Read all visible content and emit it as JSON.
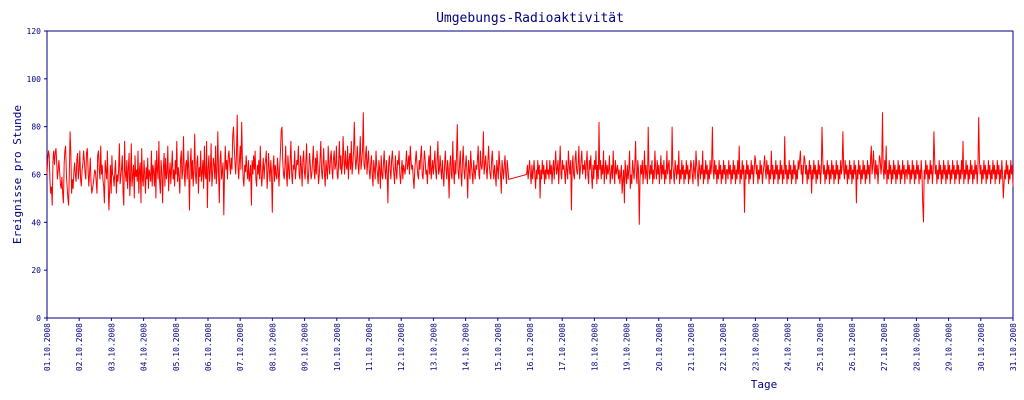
{
  "chart_data": {
    "type": "line",
    "title": "Umgebungs-Radioaktivität",
    "xlabel": "Tage",
    "ylabel": "Ereignisse pro Stunde",
    "ylim": [
      0,
      120
    ],
    "yticks": [
      0,
      20,
      40,
      60,
      80,
      100,
      120
    ],
    "xlim": [
      "2008-10-01",
      "2008-10-31"
    ],
    "xticks": [
      "01.10.2008",
      "02.10.2008",
      "03.10.2008",
      "04.10.2008",
      "05.10.2008",
      "06.10.2008",
      "07.10.2008",
      "08.10.2008",
      "09.10.2008",
      "10.10.2008",
      "11.10.2008",
      "12.10.2008",
      "13.10.2008",
      "14.10.2008",
      "15.10.2008",
      "16.10.2008",
      "17.10.2008",
      "18.10.2008",
      "19.10.2008",
      "20.10.2008",
      "21.10.2008",
      "22.10.2008",
      "23.10.2008",
      "24.10.2008",
      "25.10.2008",
      "26.10.2008",
      "27.10.2008",
      "28.10.2008",
      "29.10.2008",
      "30.10.2008",
      "31.10.2008"
    ],
    "grid": false,
    "colors": {
      "line": "#ff0000",
      "axis": "#000080",
      "text": "#000080"
    },
    "series": [
      {
        "sampling": "hourly",
        "start": "2008-10-01",
        "values": [
          60,
          66,
          70,
          68,
          57,
          52,
          55,
          47,
          66,
          70,
          64,
          69,
          71,
          65,
          58,
          62,
          66,
          61,
          56,
          54,
          59,
          52,
          48,
          65,
          70,
          72,
          60,
          55,
          50,
          47,
          62,
          78,
          68,
          52,
          58,
          54,
          61,
          65,
          60,
          57,
          66,
          69,
          58,
          62,
          70,
          58,
          55,
          62,
          64,
          70,
          66,
          61,
          58,
          69,
          71,
          63,
          55,
          60,
          67,
          57,
          52,
          54,
          56,
          59,
          62,
          61,
          57,
          52,
          68,
          70,
          62,
          58,
          72,
          60,
          64,
          58,
          55,
          48,
          66,
          62,
          58,
          70,
          56,
          45,
          54,
          64,
          52,
          68,
          60,
          59,
          55,
          62,
          66,
          52,
          60,
          57,
          62,
          73,
          56,
          59,
          63,
          68,
          52,
          47,
          74,
          61,
          57,
          66,
          54,
          62,
          69,
          51,
          58,
          73,
          55,
          60,
          64,
          50,
          68,
          59,
          62,
          57,
          70,
          52,
          62,
          65,
          48,
          71,
          58,
          55,
          66,
          60,
          52,
          63,
          58,
          67,
          54,
          62,
          60,
          57,
          70,
          55,
          64,
          61,
          55,
          66,
          50,
          70,
          62,
          58,
          74,
          57,
          52,
          66,
          60,
          48,
          63,
          69,
          55,
          67,
          58,
          61,
          72,
          53,
          60,
          65,
          56,
          63,
          70,
          58,
          62,
          55,
          66,
          60,
          74,
          57,
          63,
          59,
          52,
          66,
          70,
          58,
          62,
          76,
          60,
          55,
          64,
          66,
          58,
          70,
          62,
          45,
          64,
          71,
          58,
          66,
          55,
          62,
          77,
          60,
          56,
          65,
          68,
          52,
          63,
          59,
          70,
          57,
          61,
          66,
          54,
          72,
          60,
          58,
          74,
          46,
          62,
          68,
          57,
          62,
          73,
          55,
          60,
          67,
          64,
          58,
          72,
          56,
          62,
          78,
          60,
          48,
          66,
          70,
          58,
          61,
          65,
          43,
          60,
          72,
          62,
          66,
          58,
          68,
          70,
          64,
          60,
          67,
          62,
          76,
          80,
          72,
          65,
          60,
          69,
          85,
          63,
          58,
          66,
          72,
          62,
          82,
          66,
          58,
          55,
          64,
          61,
          68,
          62,
          58,
          66,
          57,
          60,
          64,
          47,
          66,
          60,
          68,
          62,
          70,
          58,
          55,
          64,
          60,
          66,
          58,
          72,
          60,
          55,
          62,
          67,
          58,
          64,
          66,
          70,
          54,
          60,
          69,
          62,
          57,
          66,
          61,
          44,
          62,
          68,
          57,
          64,
          60,
          58,
          67,
          62,
          55,
          63,
          70,
          78,
          80,
          66,
          60,
          58,
          64,
          72,
          60,
          55,
          68,
          62,
          58,
          66,
          74,
          60,
          56,
          64,
          62,
          70,
          58,
          62,
          66,
          64,
          72,
          60,
          58,
          68,
          63,
          55,
          66,
          70,
          61,
          58,
          65,
          73,
          60,
          56,
          62,
          69,
          64,
          58,
          60,
          66,
          72,
          62,
          58,
          67,
          60,
          70,
          64,
          56,
          60,
          66,
          74,
          62,
          58,
          64,
          71,
          60,
          55,
          66,
          62,
          58,
          72,
          64,
          60,
          67,
          70,
          62,
          58,
          66,
          70,
          62,
          64,
          72,
          60,
          58,
          66,
          74,
          62,
          68,
          60,
          64,
          76,
          66,
          60,
          70,
          64,
          62,
          72,
          58,
          66,
          69,
          62,
          74,
          60,
          64,
          70,
          82,
          68,
          62,
          66,
          72,
          64,
          60,
          68,
          76,
          62,
          66,
          70,
          86,
          64,
          62,
          68,
          72,
          60,
          66,
          70,
          62,
          58,
          64,
          68,
          60,
          55,
          66,
          62,
          58,
          70,
          64,
          60,
          56,
          66,
          62,
          54,
          68,
          60,
          58,
          64,
          70,
          62,
          58,
          66,
          60,
          48,
          64,
          68,
          62,
          58,
          66,
          70,
          64,
          60,
          56,
          68,
          62,
          58,
          66,
          64,
          70,
          60,
          56,
          62,
          66,
          58,
          64,
          62,
          60,
          65,
          70,
          62,
          64,
          68,
          60,
          72,
          66,
          62,
          64,
          58,
          54,
          62,
          66,
          70,
          64,
          60,
          58,
          66,
          62,
          68,
          72,
          60,
          58,
          64,
          70,
          66,
          60,
          62,
          56,
          64,
          68,
          60,
          72,
          58,
          62,
          66,
          60,
          64,
          70,
          62,
          58,
          66,
          74,
          60,
          62,
          68,
          62,
          58,
          66,
          60,
          55,
          64,
          70,
          62,
          58,
          66,
          62,
          50,
          64,
          68,
          60,
          58,
          74,
          62,
          56,
          66,
          60,
          68,
          81,
          62,
          58,
          64,
          70,
          60,
          55,
          66,
          72,
          62,
          58,
          64,
          68,
          60,
          50,
          66,
          62,
          58,
          70,
          64,
          60,
          56,
          66,
          62,
          58,
          64,
          62,
          66,
          72,
          60,
          58,
          70,
          64,
          62,
          66,
          78,
          60,
          64,
          68,
          62,
          58,
          66,
          72,
          64,
          60,
          58,
          66,
          70,
          62,
          58,
          64,
          60,
          55,
          66,
          62,
          58,
          70,
          64,
          60,
          52,
          66,
          62,
          58,
          64,
          68,
          60,
          56,
          66,
          62,
          58,
          64,
          70,
          62,
          58,
          60,
          64,
          58,
          62,
          66,
          56,
          60,
          64,
          52,
          62,
          58,
          66,
          60,
          54,
          64,
          58,
          62,
          66,
          42,
          60,
          64,
          58,
          62,
          66,
          60,
          56,
          64,
          58,
          62,
          66,
          60,
          54,
          62,
          58,
          66,
          60,
          64,
          50,
          62,
          58,
          66,
          60,
          64,
          56,
          62,
          58,
          66,
          60,
          62,
          58,
          66,
          60,
          64,
          56,
          62,
          66,
          58,
          64,
          70,
          60,
          62,
          66,
          56,
          64,
          72,
          60,
          58,
          66,
          62,
          64,
          60,
          56,
          66,
          62,
          58,
          70,
          64,
          60,
          66,
          45,
          62,
          68,
          60,
          58,
          66,
          70,
          62,
          60,
          64,
          72,
          58,
          62,
          66,
          70,
          60,
          64,
          62,
          66,
          58,
          64,
          70,
          60,
          56,
          66,
          62,
          68,
          60,
          54,
          64,
          58,
          66,
          62,
          70,
          56,
          64,
          58,
          82,
          62,
          66,
          58,
          64,
          60,
          70,
          56,
          62,
          66,
          58,
          64,
          60,
          62,
          68,
          56,
          60,
          64,
          58,
          70,
          62,
          56,
          66,
          60,
          62,
          64,
          58,
          62,
          56,
          60,
          64,
          52,
          58,
          62,
          48,
          66,
          60,
          56,
          64,
          58,
          62,
          70,
          54,
          60,
          56,
          66,
          62,
          58,
          64,
          74,
          60,
          56,
          66,
          62,
          39,
          58,
          64,
          60,
          66,
          56,
          62,
          70,
          58,
          64,
          60,
          56,
          80,
          62,
          58,
          64,
          60,
          66,
          56,
          62,
          58,
          70,
          62,
          58,
          66,
          60,
          64,
          56,
          62,
          68,
          58,
          64,
          60,
          66,
          56,
          62,
          58,
          70,
          60,
          64,
          66,
          56,
          62,
          58,
          80,
          64,
          60,
          56,
          66,
          62,
          58,
          64,
          60,
          70,
          56,
          62,
          58,
          66,
          60,
          64,
          56,
          62,
          58,
          66,
          60,
          64,
          56,
          62,
          58,
          66,
          64,
          60,
          56,
          66,
          62,
          58,
          70,
          64,
          60,
          55,
          66,
          62,
          58,
          64,
          60,
          70,
          56,
          62,
          58,
          66,
          60,
          64,
          56,
          62,
          58,
          66,
          60,
          64,
          80,
          62,
          58,
          66,
          60,
          64,
          56,
          62,
          58,
          66,
          60,
          64,
          56,
          62,
          58,
          66,
          60,
          64,
          56,
          62,
          62,
          58,
          66,
          60,
          64,
          56,
          62,
          58,
          66,
          60,
          64,
          56,
          62,
          58,
          66,
          60,
          72,
          56,
          62,
          58,
          66,
          60,
          64,
          44,
          62,
          58,
          66,
          60,
          64,
          56,
          62,
          58,
          66,
          60,
          64,
          56,
          62,
          68,
          66,
          60,
          64,
          56,
          62,
          58,
          66,
          60,
          64,
          56,
          60,
          64,
          68,
          62,
          58,
          66,
          60,
          64,
          56,
          62,
          58,
          70,
          60,
          64,
          56,
          62,
          58,
          66,
          60,
          64,
          56,
          62,
          58,
          66,
          60,
          64,
          56,
          62,
          58,
          76,
          60,
          64,
          56,
          62,
          58,
          66,
          60,
          64,
          56,
          62,
          58,
          66,
          60,
          64,
          56,
          62,
          58,
          66,
          62,
          66,
          70,
          60,
          64,
          56,
          62,
          68,
          66,
          60,
          64,
          56,
          62,
          58,
          66,
          60,
          64,
          52,
          62,
          58,
          66,
          60,
          64,
          56,
          62,
          58,
          66,
          60,
          64,
          56,
          62,
          80,
          66,
          60,
          64,
          56,
          62,
          58,
          66,
          60,
          64,
          56,
          62,
          58,
          66,
          60,
          64,
          56,
          62,
          58,
          66,
          60,
          64,
          56,
          62,
          58,
          66,
          60,
          64,
          78,
          62,
          58,
          66,
          60,
          64,
          56,
          62,
          58,
          66,
          60,
          64,
          56,
          62,
          58,
          66,
          60,
          64,
          48,
          62,
          58,
          66,
          60,
          64,
          56,
          62,
          58,
          66,
          60,
          64,
          56,
          62,
          58,
          66,
          60,
          64,
          56,
          66,
          72,
          60,
          64,
          70,
          62,
          58,
          66,
          60,
          64,
          56,
          62,
          68,
          66,
          60,
          64,
          86,
          62,
          58,
          66,
          60,
          72,
          56,
          62,
          58,
          66,
          60,
          64,
          56,
          62,
          58,
          66,
          60,
          64,
          56,
          62,
          58,
          66,
          60,
          64,
          56,
          62,
          58,
          66,
          60,
          64,
          56,
          62,
          62,
          58,
          66,
          60,
          64,
          56,
          62,
          58,
          66,
          60,
          64,
          56,
          62,
          58,
          66,
          60,
          64,
          56,
          62,
          58,
          66,
          60,
          48,
          40,
          62,
          58,
          66,
          60,
          64,
          56,
          62,
          58,
          66,
          60,
          64,
          56,
          62,
          78,
          66,
          60,
          64,
          56,
          62,
          58,
          66,
          60,
          64,
          56,
          62,
          58,
          66,
          60,
          64,
          56,
          62,
          58,
          66,
          60,
          64,
          56,
          62,
          58,
          66,
          60,
          64,
          56,
          62,
          58,
          66,
          60,
          64,
          56,
          62,
          58,
          66,
          60,
          74,
          56,
          62,
          58,
          66,
          60,
          64,
          56,
          62,
          58,
          66,
          60,
          64,
          56,
          62,
          58,
          66,
          60,
          64,
          56,
          62,
          84,
          66,
          60,
          64,
          56,
          62,
          58,
          66,
          60,
          64,
          56,
          62,
          58,
          66,
          60,
          64,
          56,
          62,
          58,
          66,
          60,
          64,
          56,
          62,
          58,
          66,
          60,
          64,
          56,
          62,
          58,
          66,
          60,
          50,
          56,
          62,
          58,
          66,
          60,
          64,
          56,
          62,
          58,
          66,
          60,
          64,
          55
        ]
      }
    ]
  }
}
